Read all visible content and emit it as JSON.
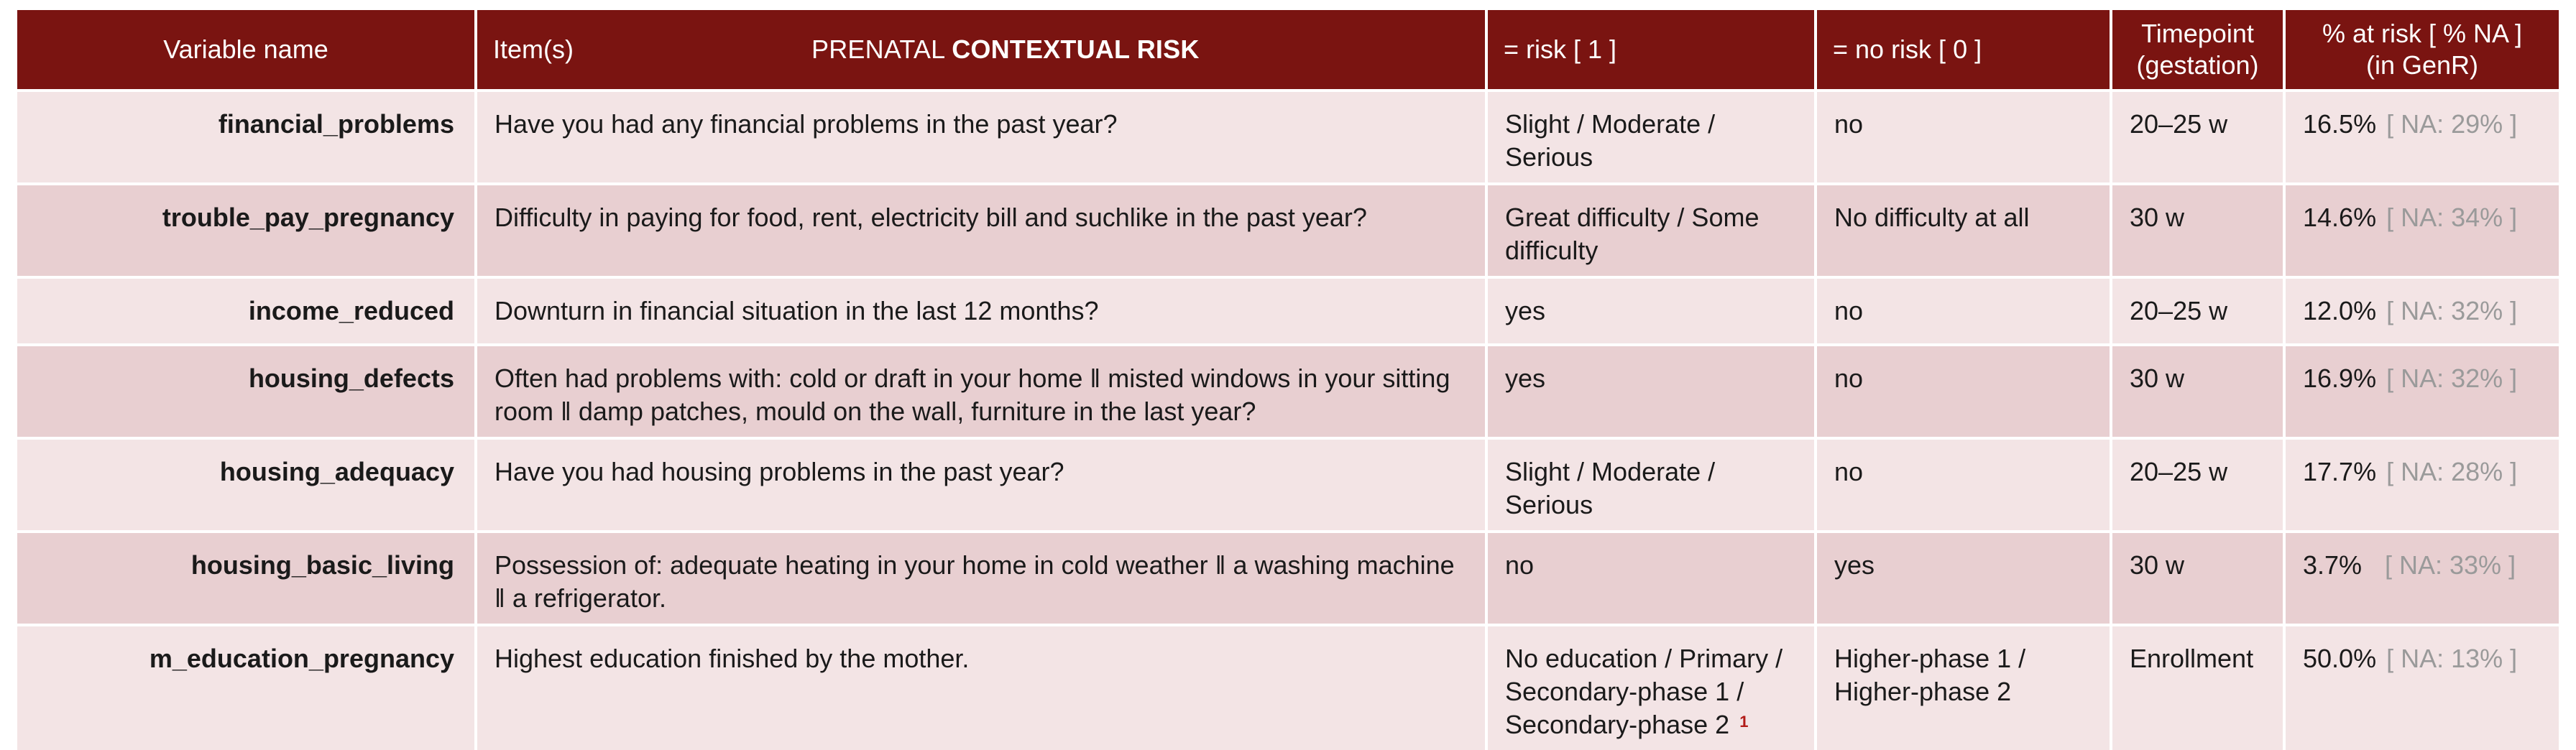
{
  "header": {
    "variable_name": "Variable name",
    "items": "Item(s)",
    "title_prefix": "PRENATAL",
    "title_bold": "CONTEXTUAL RISK",
    "risk": "= risk [ 1 ]",
    "no_risk": "= no risk [ 0 ]",
    "timepoint_line1": "Timepoint",
    "timepoint_line2": "(gestation)",
    "at_risk_line1": "% at risk [ % NA ]",
    "at_risk_line2": "(in GenR)"
  },
  "rows": [
    {
      "variable": "financial_problems",
      "item": "Have you had any financial problems in the past year?",
      "risk": "Slight / Moderate / Serious",
      "no_risk": "no",
      "timepoint": "20–25 w",
      "pct": "16.5%",
      "na": "[ NA: 29% ]"
    },
    {
      "variable": "trouble_pay_pregnancy",
      "item": "Difficulty in paying for food, rent, electricity bill and suchlike in the past year?",
      "risk": "Great difficulty / Some difficulty",
      "no_risk": "No difficulty at all",
      "timepoint": "30 w",
      "pct": "14.6%",
      "na": "[ NA: 34% ]"
    },
    {
      "variable": "income_reduced",
      "item": "Downturn in financial situation in the last 12 months?",
      "risk": "yes",
      "no_risk": "no",
      "timepoint": "20–25 w",
      "pct": "12.0%",
      "na": "[ NA: 32% ]"
    },
    {
      "variable": "housing_defects",
      "item": "Often had problems with: cold or draft in your home ǁ misted windows in your sitting room ǁ damp patches, mould on the wall, furniture in the last year?",
      "risk": "yes",
      "no_risk": "no",
      "timepoint": "30 w",
      "pct": "16.9%",
      "na": "[ NA: 32% ]"
    },
    {
      "variable": "housing_adequacy",
      "item": "Have you had housing problems in the past year?",
      "risk": "Slight / Moderate / Serious",
      "no_risk": "no",
      "timepoint": "20–25 w",
      "pct": "17.7%",
      "na": "[ NA: 28% ]"
    },
    {
      "variable": "housing_basic_living",
      "item": "Possession of: adequate heating in your home in cold weather ǁ a washing machine ǁ a refrigerator.",
      "risk": "no",
      "no_risk": "yes",
      "timepoint": "30 w",
      "pct": "3.7%",
      "na": "[ NA: 33% ]"
    },
    {
      "variable": "m_education_pregnancy",
      "item": "Highest education finished by the mother.",
      "risk": "No education / Primary / Secondary-phase 1 / Secondary-phase 2",
      "risk_footnote": "1",
      "no_risk": "Higher-phase 1 / Higher-phase 2",
      "timepoint": "Enrollment",
      "pct": "50.0%",
      "na": "[ NA: 13% ]"
    }
  ],
  "colors": {
    "header_bg": "#7a1411",
    "row_light": "#f3e4e5",
    "row_dark": "#e8cfd1",
    "na_text": "#9a9a9a",
    "footnote": "#b21b18"
  }
}
